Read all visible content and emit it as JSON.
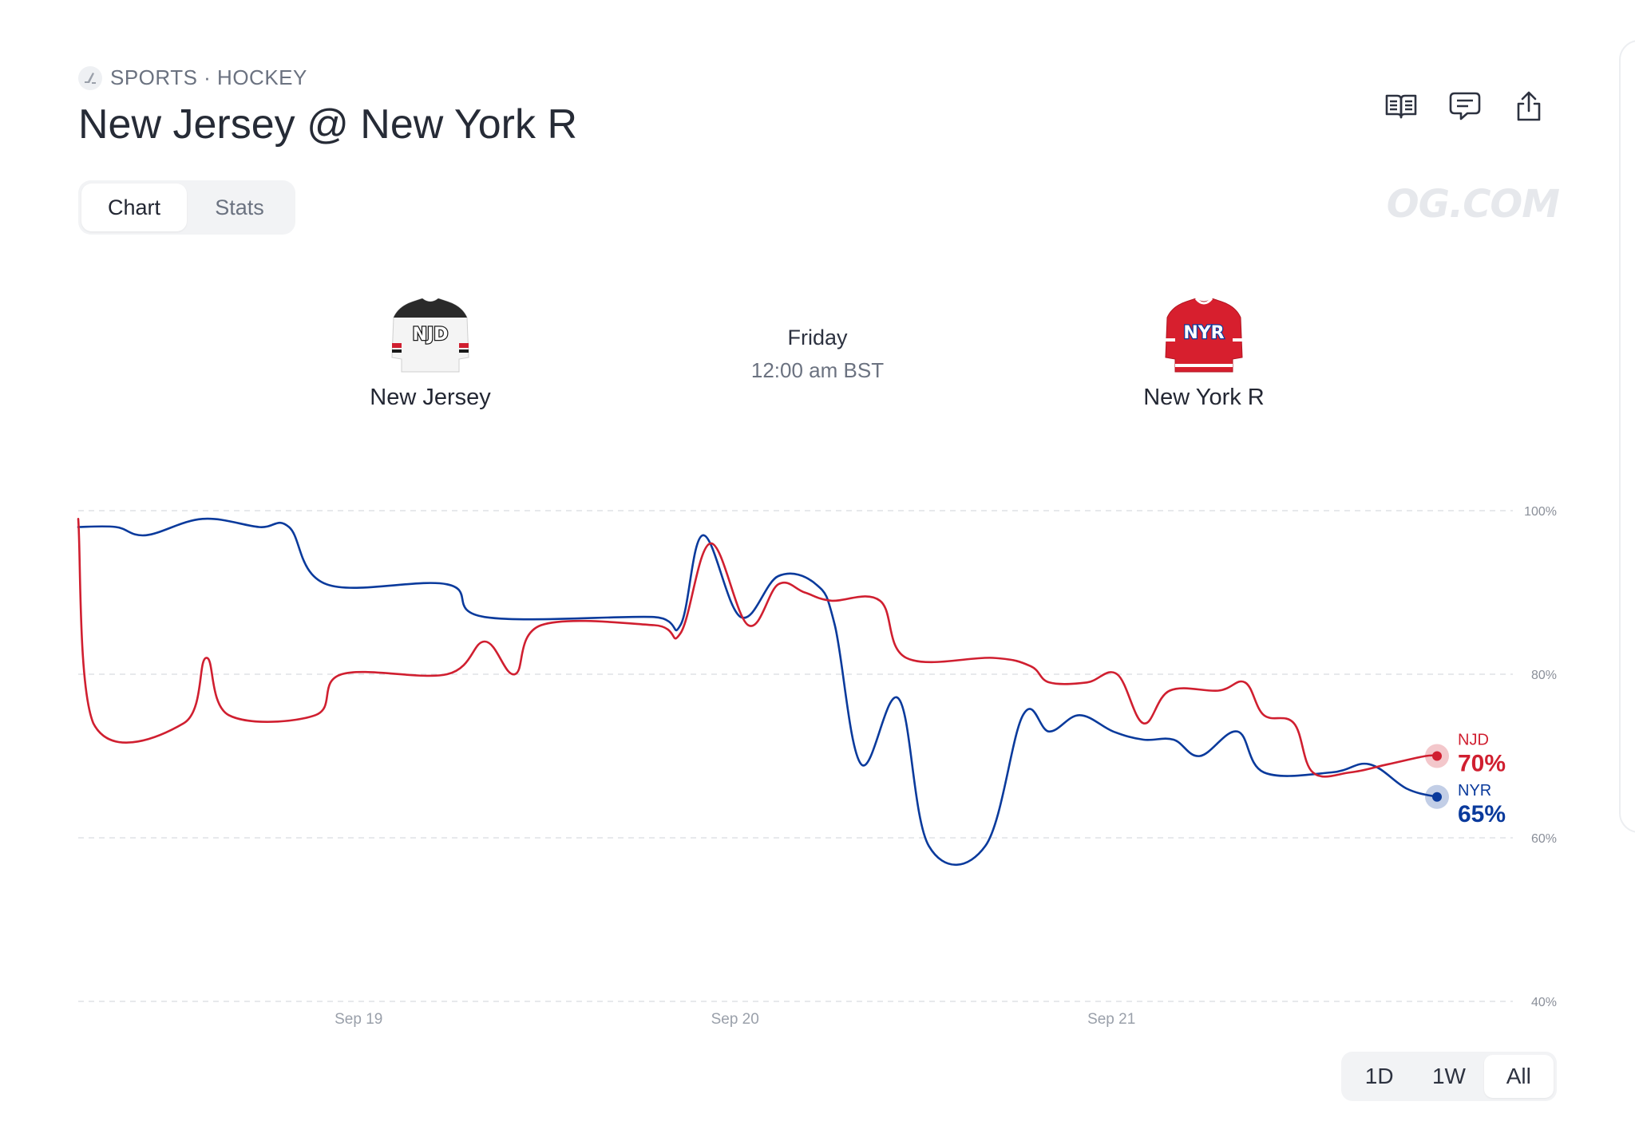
{
  "breadcrumb": "SPORTS · HOCKEY",
  "title": "New Jersey @ New York R",
  "tabs": [
    {
      "label": "Chart",
      "active": true
    },
    {
      "label": "Stats",
      "active": false
    }
  ],
  "watermark": "OG.COM",
  "matchup": {
    "home": {
      "name": "New Jersey",
      "abbr": "NJD",
      "color": "#d01f30"
    },
    "away": {
      "name": "New York R",
      "abbr": "NYR",
      "color": "#0a3a9c"
    },
    "day": "Friday",
    "time": "12:00 am BST"
  },
  "icons": [
    "hockey-icon",
    "book-icon",
    "comment-icon",
    "share-icon"
  ],
  "range_buttons": [
    {
      "label": "1D",
      "active": false
    },
    {
      "label": "1W",
      "active": false
    },
    {
      "label": "All",
      "active": true
    }
  ],
  "chart_data": {
    "type": "line",
    "x_labels": [
      "Sep 19",
      "Sep 20",
      "Sep 21"
    ],
    "y_ticks": [
      "100%",
      "80%",
      "60%",
      "40%"
    ],
    "ylim": [
      40,
      100
    ],
    "grid": true,
    "x_range": [
      18.12,
      21.85
    ],
    "series": [
      {
        "name": "NJD",
        "color": "#d01f30",
        "end_label": "70%",
        "points": [
          [
            18.12,
            99
          ],
          [
            18.16,
            74
          ],
          [
            18.4,
            74
          ],
          [
            18.46,
            82
          ],
          [
            18.52,
            75
          ],
          [
            18.75,
            75
          ],
          [
            18.82,
            80
          ],
          [
            19.1,
            80
          ],
          [
            19.2,
            84
          ],
          [
            19.28,
            80
          ],
          [
            19.35,
            86
          ],
          [
            19.65,
            86
          ],
          [
            19.72,
            85
          ],
          [
            19.8,
            96
          ],
          [
            19.9,
            86
          ],
          [
            19.98,
            91
          ],
          [
            20.05,
            90
          ],
          [
            20.12,
            89
          ],
          [
            20.25,
            89
          ],
          [
            20.32,
            82
          ],
          [
            20.55,
            82
          ],
          [
            20.65,
            81
          ],
          [
            20.7,
            79
          ],
          [
            20.8,
            79
          ],
          [
            20.88,
            80
          ],
          [
            20.95,
            74
          ],
          [
            21.02,
            78
          ],
          [
            21.15,
            78
          ],
          [
            21.22,
            79
          ],
          [
            21.27,
            75
          ],
          [
            21.35,
            74
          ],
          [
            21.4,
            68
          ],
          [
            21.5,
            68
          ],
          [
            21.6,
            69
          ],
          [
            21.7,
            70
          ],
          [
            21.73,
            70
          ]
        ]
      },
      {
        "name": "NYR",
        "color": "#0a3a9c",
        "end_label": "65%",
        "points": [
          [
            18.12,
            98
          ],
          [
            18.22,
            98
          ],
          [
            18.3,
            97
          ],
          [
            18.45,
            99
          ],
          [
            18.6,
            98
          ],
          [
            18.68,
            98
          ],
          [
            18.78,
            91
          ],
          [
            19.1,
            91
          ],
          [
            19.2,
            87
          ],
          [
            19.65,
            87
          ],
          [
            19.72,
            86
          ],
          [
            19.78,
            97
          ],
          [
            19.88,
            87
          ],
          [
            19.98,
            92
          ],
          [
            20.08,
            91
          ],
          [
            20.13,
            86
          ],
          [
            20.2,
            69
          ],
          [
            20.3,
            77
          ],
          [
            20.38,
            59
          ],
          [
            20.53,
            59
          ],
          [
            20.63,
            75
          ],
          [
            20.7,
            73
          ],
          [
            20.78,
            75
          ],
          [
            20.87,
            73
          ],
          [
            20.95,
            72
          ],
          [
            21.03,
            72
          ],
          [
            21.1,
            70
          ],
          [
            21.2,
            73
          ],
          [
            21.27,
            68
          ],
          [
            21.45,
            68
          ],
          [
            21.55,
            69
          ],
          [
            21.65,
            66
          ],
          [
            21.73,
            65
          ]
        ]
      }
    ]
  }
}
